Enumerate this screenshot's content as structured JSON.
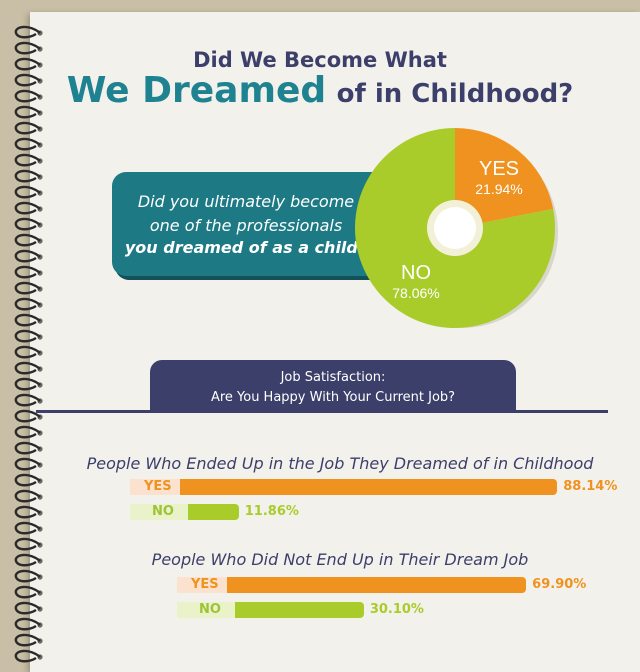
{
  "header": {
    "title_line1": "Did We Become What",
    "title_highlight": "We Dreamed",
    "title_rest": "of in Childhood?"
  },
  "question": {
    "line1": "Did you ultimately become",
    "line2": "one of the professionals",
    "line3": "you dreamed of as a child?"
  },
  "banner": {
    "line1": "Job Satisfaction:",
    "line2": "Are You Happy With Your Current Job?"
  },
  "colors": {
    "yes": "#f0921f",
    "no": "#a9cc2b",
    "navy": "#3b3f6a",
    "teal": "#1d7a85"
  },
  "chart_data": [
    {
      "type": "pie",
      "slices": [
        {
          "label": "YES",
          "value": 21.94,
          "display": "21.94%"
        },
        {
          "label": "NO",
          "value": 78.06,
          "display": "78.06%"
        }
      ]
    },
    {
      "type": "bar",
      "title": "People Who Ended Up in the Job They Dreamed of in Childhood",
      "categories": [
        "YES",
        "NO"
      ],
      "values": [
        88.14,
        11.86
      ],
      "labels": [
        "88.14%",
        "11.86%"
      ]
    },
    {
      "type": "bar",
      "title": "People Who Did Not End Up in Their Dream Job",
      "categories": [
        "YES",
        "NO"
      ],
      "values": [
        69.9,
        30.1
      ],
      "labels": [
        "69.90%",
        "30.10%"
      ]
    }
  ]
}
